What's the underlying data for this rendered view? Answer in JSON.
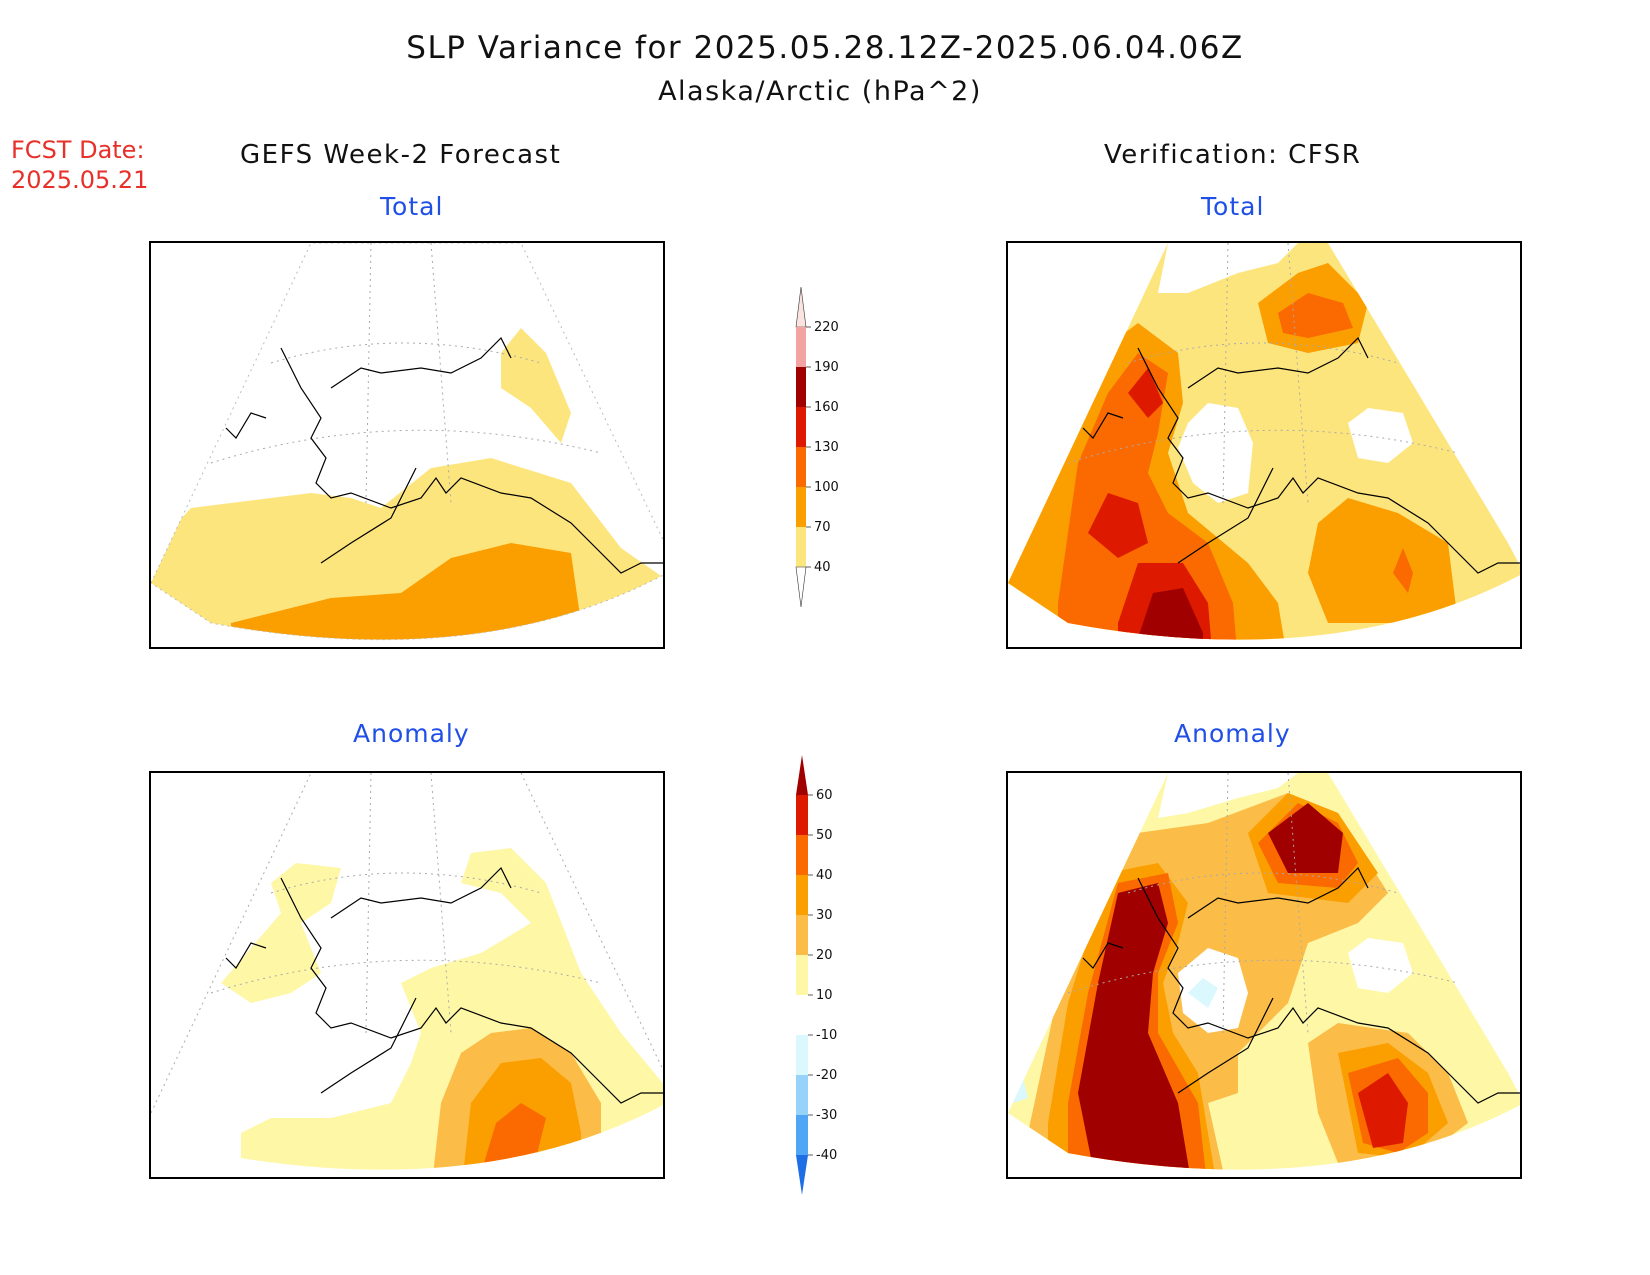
{
  "header": {
    "title": "SLP Variance for 2025.05.28.12Z-2025.06.04.06Z",
    "subtitle": "Alaska/Arctic (hPa^2)"
  },
  "forecast_date": {
    "label": "FCST Date:",
    "value": "2025.05.21"
  },
  "columns": {
    "left": "GEFS Week-2 Forecast",
    "right": "Verification: CFSR"
  },
  "panels": {
    "forecast_total": "Total",
    "verification_total": "Total",
    "forecast_anomaly": "Anomaly",
    "verification_anomaly": "Anomaly"
  },
  "colorbar_total": {
    "levels": [
      "220",
      "190",
      "160",
      "130",
      "100",
      "70",
      "40"
    ],
    "colors": [
      "#fbe4e0",
      "#f4a3a3",
      "#a00000",
      "#dd1a00",
      "#fa6a00",
      "#fb9f00",
      "#fde57e"
    ]
  },
  "colorbar_anomaly": {
    "levels": [
      "60",
      "50",
      "40",
      "30",
      "20",
      "10",
      "-10",
      "-20",
      "-30",
      "-40"
    ],
    "colors": [
      "#a00000",
      "#dd1a00",
      "#fa6a00",
      "#fb9f00",
      "#fcbc48",
      "#fdf7a6",
      "#ffffff",
      "#dcf8ff",
      "#96d2fa",
      "#50a5f5",
      "#1e6ee6"
    ]
  },
  "colors": {
    "level_40_70": "#fde57e",
    "level_70_100": "#fb9f00",
    "level_100_130": "#fa6a00",
    "level_130_160": "#dd1a00",
    "level_160_190": "#a00000",
    "anom_10_20": "#fdf7a6",
    "anom_20_30": "#fcbc48",
    "anom_neg10_neg20": "#dcf8ff"
  }
}
